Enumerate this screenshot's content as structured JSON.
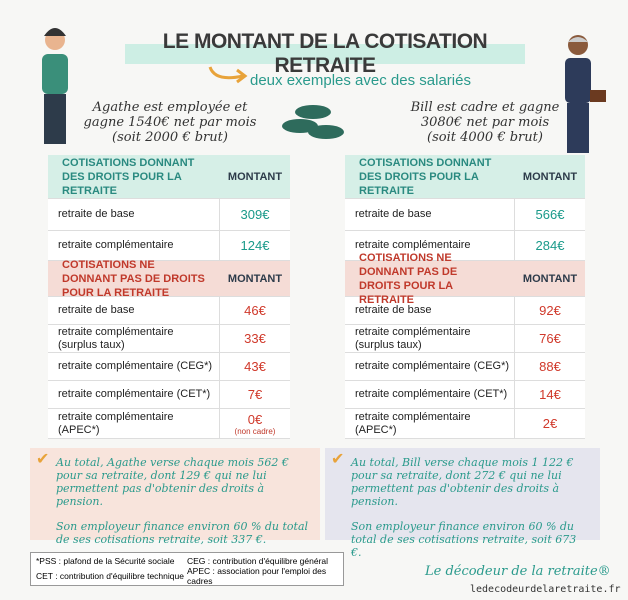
{
  "header": {
    "title": "LE MONTANT DE LA COTISATION RETRAITE",
    "subtitle": "deux exemples avec des salariés"
  },
  "examples": [
    {
      "intro": [
        "Agathe est employée et",
        "gagne 1540€ net par mois",
        "(soit 2000 € brut)"
      ],
      "tables": [
        {
          "header": [
            "COTISATIONS DONNANT DES DROITS POUR LA RETRAITE",
            "MONTANT"
          ],
          "rows": [
            {
              "label": "retraite de base",
              "amount": "309€"
            },
            {
              "label": "retraite complémentaire",
              "amount": "124€"
            }
          ]
        },
        {
          "header": [
            "COTISATIONS NE DONNANT PAS DE DROITS POUR LA RETRAITE",
            "MONTANT"
          ],
          "rows": [
            {
              "label": "retraite de base",
              "amount": "46€"
            },
            {
              "label": "retraite complémentaire (surplus taux)",
              "amount": "33€"
            },
            {
              "label": "retraite complémentaire (CEG*)",
              "amount": "43€"
            },
            {
              "label": "retraite complémentaire (CET*)",
              "amount": "7€"
            },
            {
              "label": "retraite complémentaire (APEC*)",
              "amount": "0€",
              "note": "(non cadre)"
            }
          ]
        }
      ],
      "summary": [
        "Au total, Agathe verse chaque mois 562 € pour sa retraite, dont 129 € qui ne lui permettent pas d'obtenir des droits à pension.",
        "Son employeur finance environ 60 % du total de ses cotisations retraite, soit 337 €."
      ]
    },
    {
      "intro": [
        "Bill est cadre et gagne",
        "3080€ net par mois",
        "(soit 4000 € brut)"
      ],
      "tables": [
        {
          "header": [
            "COTISATIONS DONNANT DES DROITS POUR LA RETRAITE",
            "MONTANT"
          ],
          "rows": [
            {
              "label": "retraite de base",
              "amount": "566€"
            },
            {
              "label": "retraite complémentaire",
              "amount": "284€"
            }
          ]
        },
        {
          "header": [
            "COTISATIONS NE DONNANT PAS DE DROITS POUR LA RETRAITE",
            "MONTANT"
          ],
          "rows": [
            {
              "label": "retraite de base",
              "amount": "92€"
            },
            {
              "label": "retraite complémentaire (surplus taux)",
              "amount": "76€"
            },
            {
              "label": "retraite complémentaire (CEG*)",
              "amount": "88€"
            },
            {
              "label": "retraite complémentaire (CET*)",
              "amount": "14€"
            },
            {
              "label": "retraite complémentaire (APEC*)",
              "amount": "2€"
            }
          ]
        }
      ],
      "summary": [
        "Au total, Bill verse chaque mois 1 122 € pour sa retraite, dont 272 € qui ne lui permettent pas d'obtenir des droits à pension.",
        "Son employeur finance environ 60 % du total de ses cotisations retraite, soit 673 €."
      ]
    }
  ],
  "footnotes": [
    "*PSS : plafond de la Sécurité sociale",
    "CEG : contribution d'équilibre général",
    "CET : contribution d'équilibre technique",
    "APEC : association pour l'emploi des cadres"
  ],
  "brand": "Le décodeur de la retraite®",
  "url": "ledecodeurdelaretraite.fr"
}
